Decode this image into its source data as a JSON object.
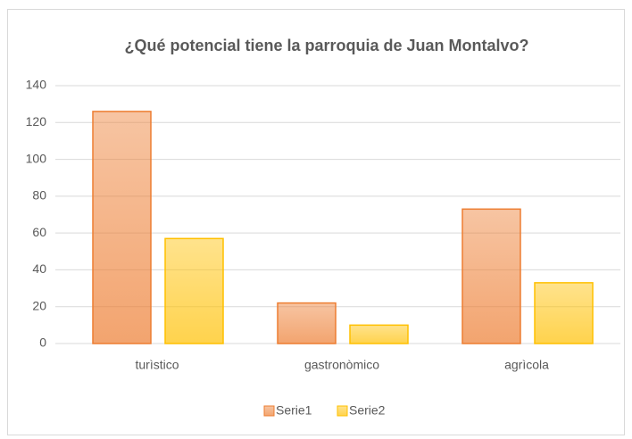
{
  "chart_data": {
    "type": "bar",
    "title": "¿Qué potencial  tiene la parroquia de Juan Montalvo?",
    "categories": [
      "turìstico",
      "gastronòmico",
      "agrìcola"
    ],
    "series": [
      {
        "name": "Serie1",
        "color": "#ed7d31",
        "values": [
          126,
          22,
          73
        ]
      },
      {
        "name": "Serie2",
        "color": "#ffc000",
        "values": [
          57,
          10,
          33
        ]
      }
    ],
    "ylim": [
      0,
      140
    ],
    "yticks": [
      0,
      20,
      40,
      60,
      80,
      100,
      120,
      140
    ],
    "grid": true,
    "legend": "bottom"
  }
}
